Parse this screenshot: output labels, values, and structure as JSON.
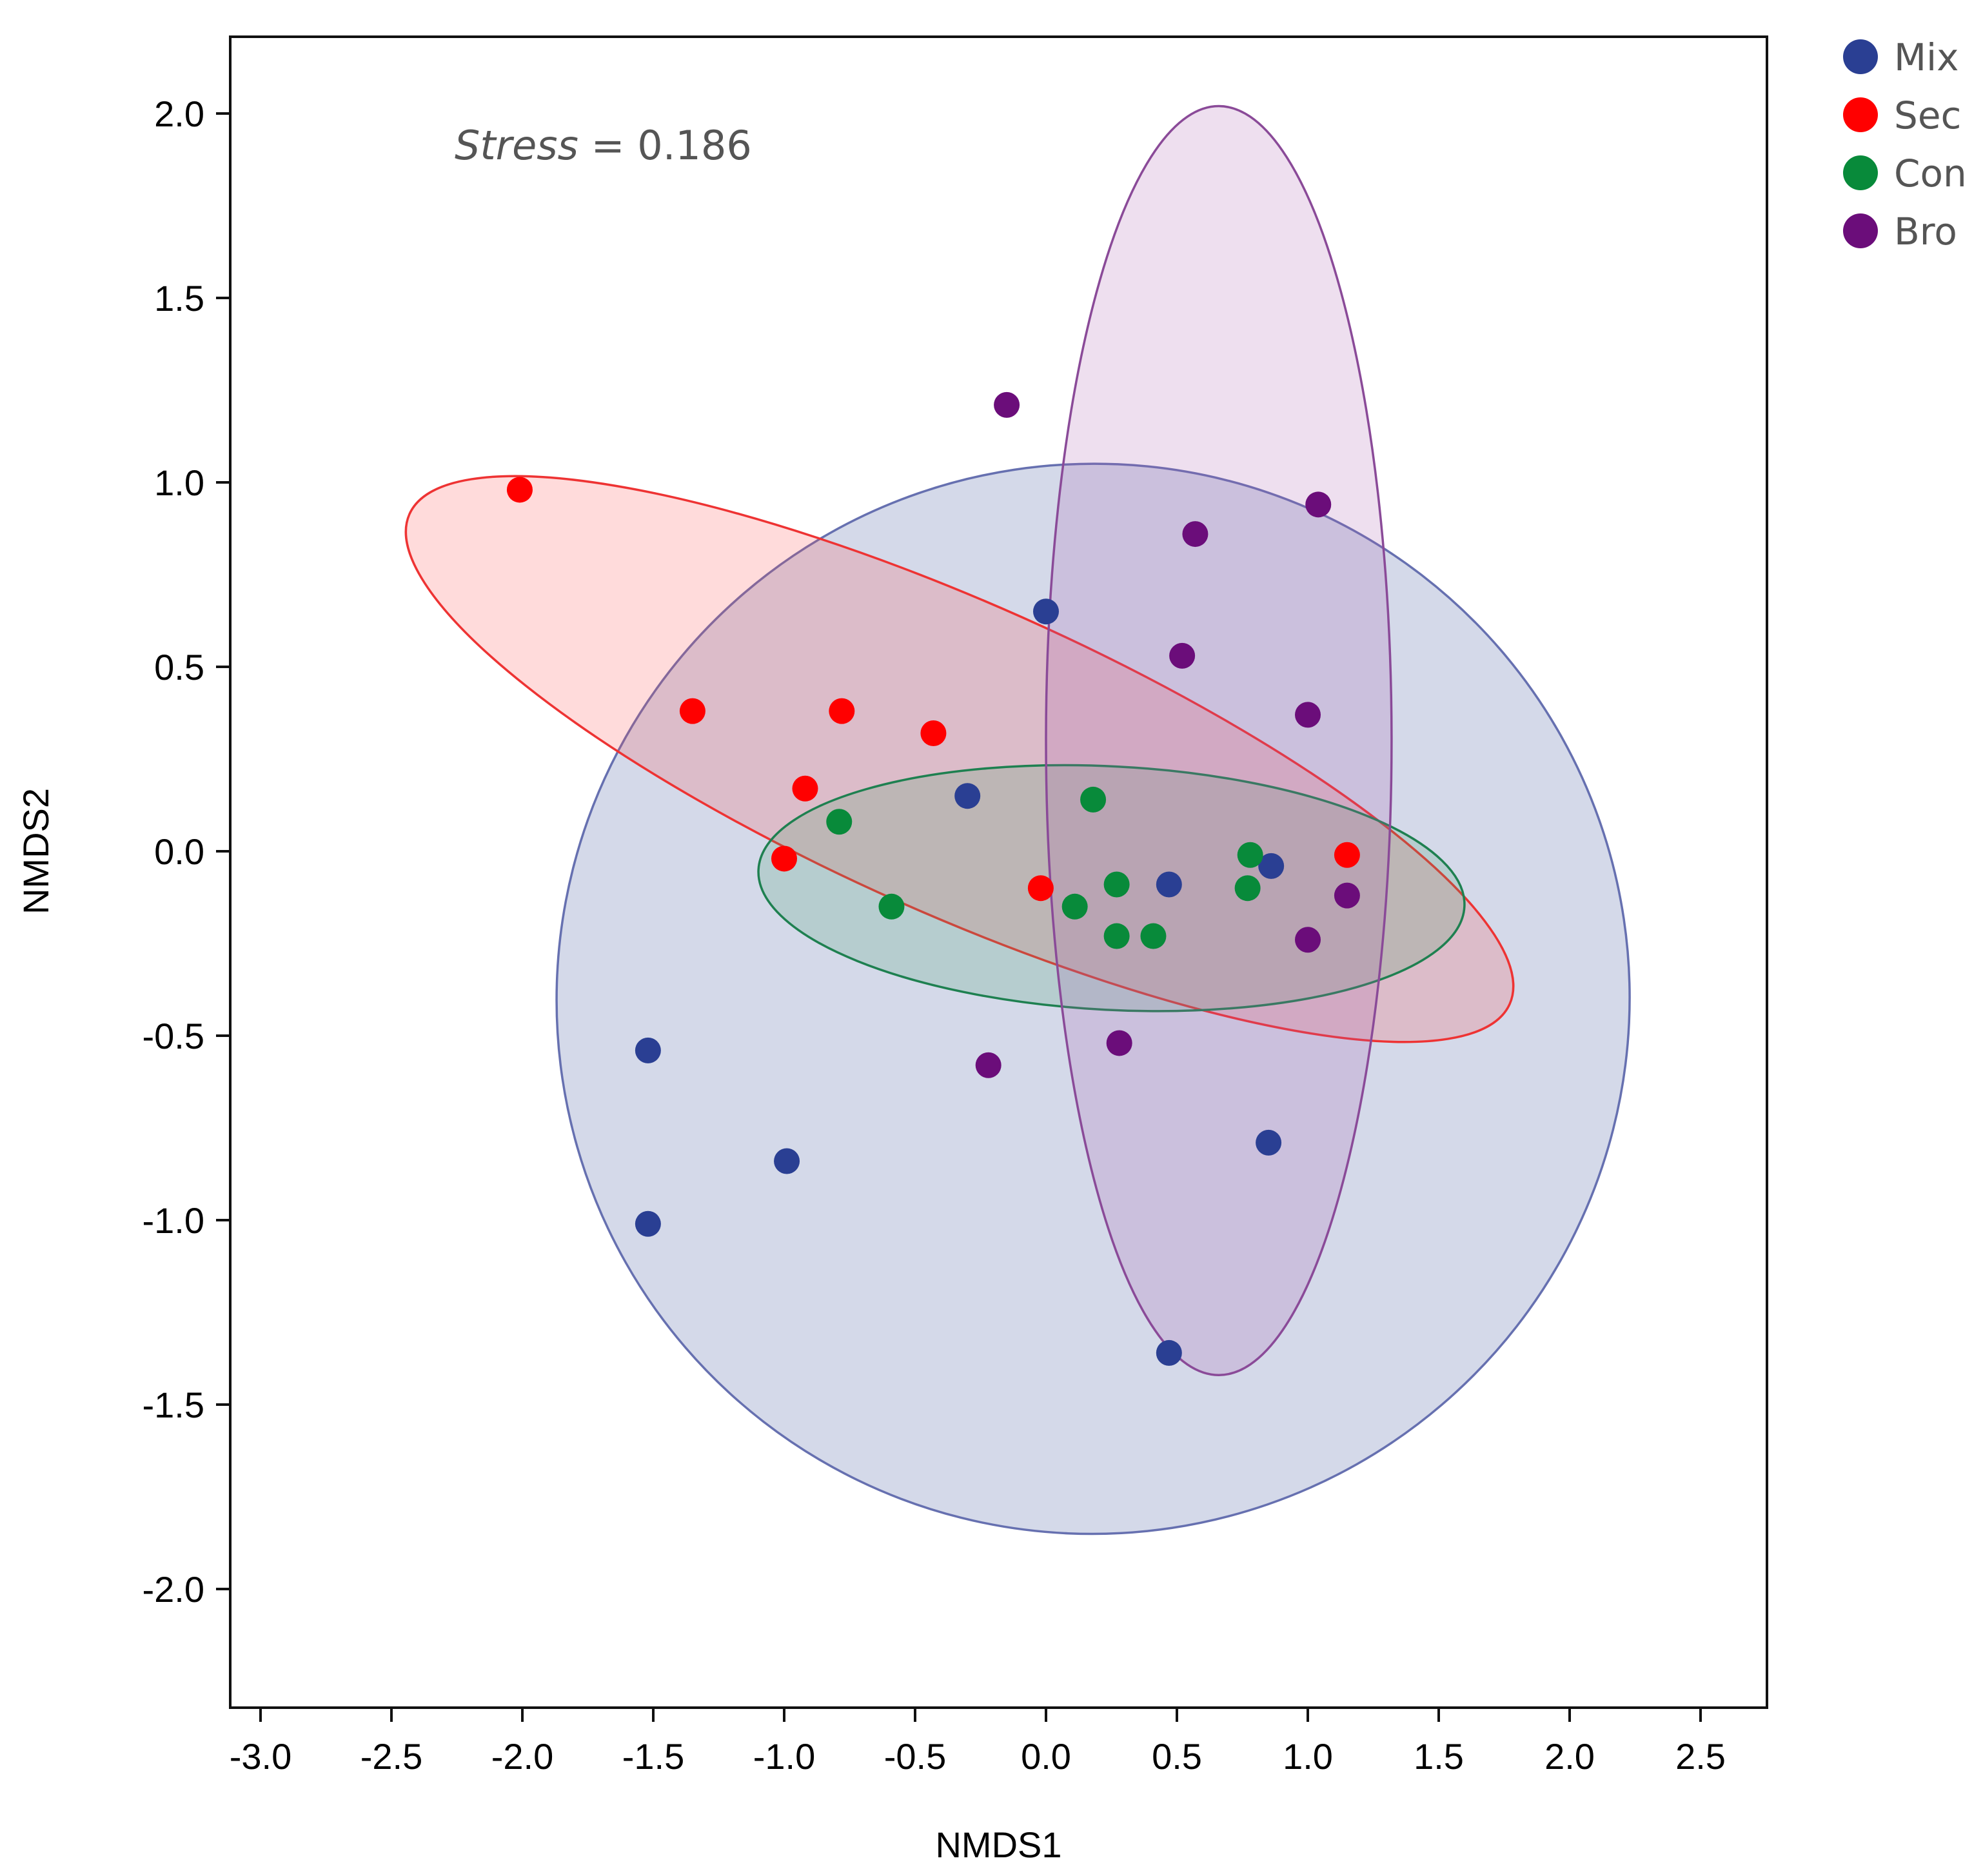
{
  "chart_data": {
    "type": "scatter",
    "title": "",
    "xlabel": "NMDS1",
    "ylabel": "NMDS2",
    "xlim": [
      -3.1,
      2.75
    ],
    "ylim": [
      -2.3,
      2.2
    ],
    "x_ticks": [
      -3.0,
      -2.5,
      -2.0,
      -1.5,
      -1.0,
      -0.5,
      0.0,
      0.5,
      1.0,
      1.5,
      2.0,
      2.5
    ],
    "y_ticks": [
      -2.0,
      -1.5,
      -1.0,
      -0.5,
      0.0,
      0.5,
      1.0,
      1.5,
      2.0
    ],
    "x_tick_labels": [
      "-3.0",
      "-2.5",
      "-2.0",
      "-1.5",
      "-1.0",
      "-0.5",
      "0.0",
      "0.5",
      "1.0",
      "1.5",
      "2.0",
      "2.5"
    ],
    "y_tick_labels": [
      "-2.0",
      "-1.5",
      "-1.0",
      "-0.5",
      "0.0",
      "0.5",
      "1.0",
      "1.5",
      "2.0"
    ],
    "annotation": {
      "label_italic": "Stress",
      "equals": " = ",
      "value": "0.186"
    },
    "legend_position": "top-right-outside",
    "grid": false,
    "series": [
      {
        "name": "Mix",
        "color": "#2a3f93",
        "ellipse_fill": "#2a3f93",
        "ellipse_stroke": "#6670b0",
        "ellipse": {
          "cx": 0.18,
          "cy": -0.4,
          "rx": 2.05,
          "ry": 1.45,
          "angle_deg": 19
        },
        "points": [
          [
            0.0,
            0.65
          ],
          [
            -0.3,
            0.15
          ],
          [
            0.47,
            -0.09
          ],
          [
            0.86,
            -0.04
          ],
          [
            -1.52,
            -0.54
          ],
          [
            -0.99,
            -0.84
          ],
          [
            -1.52,
            -1.01
          ],
          [
            0.85,
            -0.79
          ],
          [
            0.47,
            -1.36
          ]
        ]
      },
      {
        "name": "Sec",
        "color": "#ff0000",
        "ellipse_fill": "#ff4d4d",
        "ellipse_stroke": "#ee3333",
        "ellipse": {
          "cx": -0.33,
          "cy": 0.25,
          "rx": 2.3,
          "ry": 0.42,
          "angle_deg": -24
        },
        "points": [
          [
            -2.01,
            0.98
          ],
          [
            -1.35,
            0.38
          ],
          [
            -0.78,
            0.38
          ],
          [
            -0.43,
            0.32
          ],
          [
            -0.92,
            0.17
          ],
          [
            -1.0,
            -0.02
          ],
          [
            -0.02,
            -0.1
          ],
          [
            1.15,
            -0.01
          ]
        ]
      },
      {
        "name": "Con",
        "color": "#088a3a",
        "ellipse_fill": "#3f9f6a",
        "ellipse_stroke": "#1e8050",
        "ellipse": {
          "cx": 0.25,
          "cy": -0.1,
          "rx": 1.35,
          "ry": 0.33,
          "angle_deg": -3
        },
        "points": [
          [
            -0.79,
            0.08
          ],
          [
            0.18,
            0.14
          ],
          [
            -0.59,
            -0.15
          ],
          [
            0.11,
            -0.15
          ],
          [
            0.27,
            -0.09
          ],
          [
            0.27,
            -0.23
          ],
          [
            0.41,
            -0.23
          ],
          [
            0.78,
            -0.01
          ],
          [
            0.77,
            -0.1
          ]
        ]
      },
      {
        "name": "Bro",
        "color": "#6b0d7a",
        "ellipse_fill": "#a85fb0",
        "ellipse_stroke": "#8a4a98",
        "ellipse": {
          "cx": 0.66,
          "cy": 0.3,
          "rx": 0.66,
          "ry": 1.72,
          "angle_deg": 0
        },
        "points": [
          [
            -0.15,
            1.21
          ],
          [
            1.04,
            0.94
          ],
          [
            0.57,
            0.86
          ],
          [
            0.52,
            0.53
          ],
          [
            1.0,
            0.37
          ],
          [
            1.15,
            -0.12
          ],
          [
            1.0,
            -0.24
          ],
          [
            -0.22,
            -0.58
          ],
          [
            0.28,
            -0.52
          ]
        ]
      }
    ]
  }
}
